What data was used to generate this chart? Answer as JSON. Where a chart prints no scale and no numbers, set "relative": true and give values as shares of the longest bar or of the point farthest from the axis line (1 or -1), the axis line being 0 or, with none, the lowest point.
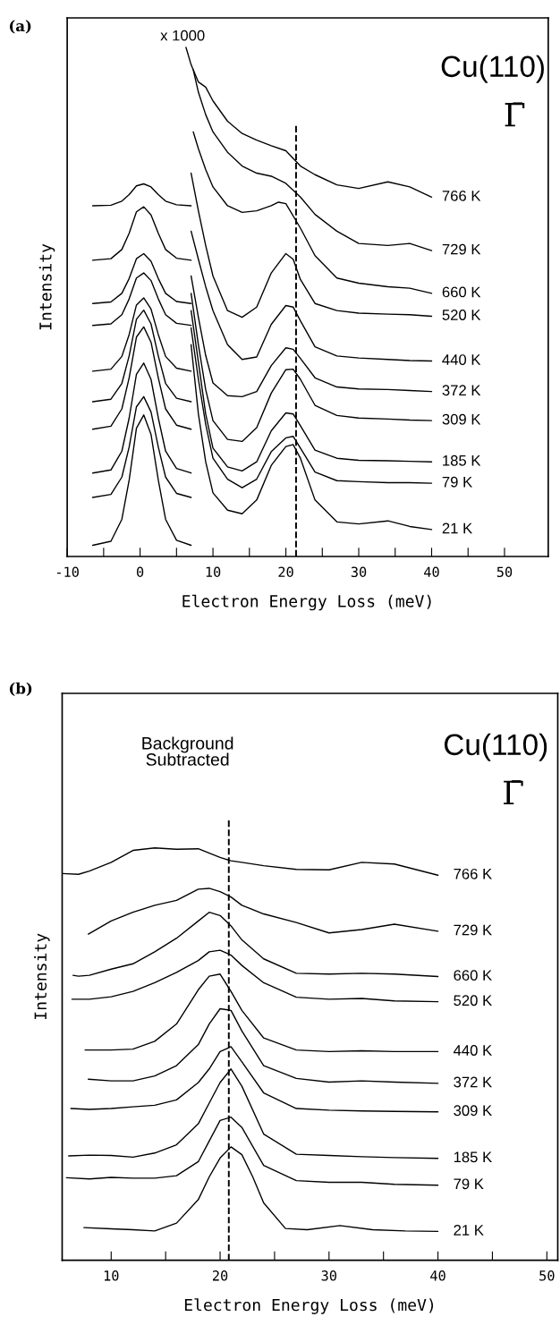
{
  "chart_data": [
    {
      "type": "line",
      "title": "(a)",
      "xlabel": "Electron Energy Loss (meV)",
      "ylabel": "Intensity",
      "relative": true,
      "tick_labels": "x",
      "line_style": "solid",
      "marker": "none",
      "xlim": [
        -10,
        56
      ],
      "xticks": [
        -10,
        {
          "value": -5,
          "label": null
        },
        0,
        {
          "value": 5,
          "label": null
        },
        10,
        {
          "value": 15,
          "label": null
        },
        20,
        {
          "value": 25,
          "label": null
        },
        30,
        {
          "value": 35,
          "label": null
        },
        40,
        {
          "value": 45,
          "label": null
        },
        50
      ],
      "annotations": [
        "x 1000",
        "Cu(110)",
        "Γ̄"
      ],
      "ref_lines": [
        {
          "axis": "x",
          "value": 21.4,
          "color": "#000000",
          "line_style": "dashed"
        }
      ],
      "series": [
        {
          "color": "#000000",
          "x": [
            -6.5,
            -4,
            -2.5,
            -1.5,
            -0.5,
            0.5,
            1.5,
            2.5,
            3.5,
            5,
            7
          ],
          "values": [
            0.689,
            0.69,
            0.698,
            0.711,
            0.728,
            0.732,
            0.726,
            0.711,
            0.698,
            0.691,
            0.689
          ]
        },
        {
          "color": "#000000",
          "x": [
            -6.5,
            -4,
            -2.5,
            -1.5,
            -0.5,
            0.5,
            1.5,
            2.5,
            3.5,
            5,
            7
          ],
          "values": [
            0.582,
            0.585,
            0.603,
            0.635,
            0.677,
            0.687,
            0.671,
            0.635,
            0.603,
            0.586,
            0.582
          ]
        },
        {
          "color": "#000000",
          "x": [
            -6.5,
            -4,
            -2.5,
            -1.5,
            -0.5,
            0.5,
            1.5,
            2.5,
            3.5,
            5,
            7
          ],
          "values": [
            0.497,
            0.5,
            0.517,
            0.546,
            0.585,
            0.595,
            0.58,
            0.546,
            0.517,
            0.501,
            0.497
          ]
        },
        {
          "color": "#000000",
          "x": [
            -6.5,
            -4,
            -2.5,
            -1.5,
            -0.5,
            0.5,
            1.5,
            2.5,
            3.5,
            5,
            7
          ],
          "values": [
            0.454,
            0.457,
            0.475,
            0.506,
            0.547,
            0.557,
            0.542,
            0.506,
            0.475,
            0.458,
            0.454
          ]
        },
        {
          "color": "#000000",
          "x": [
            -6.5,
            -4,
            -2.5,
            -1.5,
            -0.5,
            0.5,
            1.5,
            2.5,
            3.5,
            5,
            7
          ],
          "values": [
            0.364,
            0.368,
            0.393,
            0.436,
            0.494,
            0.508,
            0.486,
            0.436,
            0.393,
            0.37,
            0.364
          ]
        },
        {
          "color": "#000000",
          "x": [
            -6.5,
            -4,
            -2.5,
            -1.5,
            -0.5,
            0.5,
            1.5,
            2.5,
            3.5,
            5,
            7
          ],
          "values": [
            0.304,
            0.309,
            0.34,
            0.394,
            0.466,
            0.484,
            0.457,
            0.394,
            0.34,
            0.311,
            0.304
          ]
        },
        {
          "color": "#000000",
          "x": [
            -6.5,
            -4,
            -2.5,
            -1.5,
            -0.5,
            0.5,
            1.5,
            2.5,
            3.5,
            5,
            7
          ],
          "values": [
            0.25,
            0.256,
            0.29,
            0.351,
            0.431,
            0.451,
            0.421,
            0.351,
            0.29,
            0.258,
            0.25
          ]
        },
        {
          "color": "#000000",
          "x": [
            -6.5,
            -4,
            -2.5,
            -1.5,
            -0.5,
            0.5,
            1.5,
            2.5,
            3.5,
            5,
            7
          ],
          "values": [
            0.164,
            0.17,
            0.207,
            0.272,
            0.358,
            0.38,
            0.348,
            0.272,
            0.207,
            0.173,
            0.164
          ]
        },
        {
          "color": "#000000",
          "x": [
            -6.5,
            -4,
            -2.5,
            -1.5,
            -0.5,
            0.5,
            1.5,
            2.5,
            3.5,
            5,
            7
          ],
          "values": [
            0.116,
            0.122,
            0.156,
            0.215,
            0.294,
            0.314,
            0.284,
            0.215,
            0.156,
            0.124,
            0.116
          ]
        },
        {
          "color": "#000000",
          "x": [
            -6.5,
            -4,
            -2.5,
            -1.5,
            -0.5,
            0.5,
            1.5,
            2.5,
            3.5,
            5,
            7
          ],
          "values": [
            0.022,
            0.03,
            0.073,
            0.15,
            0.252,
            0.278,
            0.24,
            0.15,
            0.073,
            0.032,
            0.022
          ]
        },
        {
          "name": "766 K",
          "color": "#000000",
          "x": [
            6.3,
            7,
            8,
            9,
            10,
            12,
            14,
            16,
            18,
            20,
            22,
            24,
            27,
            30,
            34,
            37,
            40
          ],
          "values": [
            1.0,
            0.966,
            0.932,
            0.922,
            0.895,
            0.855,
            0.831,
            0.818,
            0.807,
            0.797,
            0.767,
            0.75,
            0.73,
            0.723,
            0.736,
            0.726,
            0.706
          ]
        },
        {
          "name": "729 K",
          "color": "#000000",
          "x": [
            7.3,
            8,
            9,
            10,
            12,
            14,
            16,
            18,
            20,
            22,
            24,
            27,
            30,
            34,
            37,
            40
          ],
          "values": [
            0.956,
            0.912,
            0.868,
            0.834,
            0.794,
            0.767,
            0.753,
            0.747,
            0.733,
            0.706,
            0.672,
            0.639,
            0.615,
            0.611,
            0.615,
            0.601
          ]
        },
        {
          "name": "660 K",
          "color": "#000000",
          "x": [
            7.3,
            8,
            9,
            10,
            12,
            14,
            16,
            18,
            19,
            20,
            22,
            24,
            27,
            30,
            34,
            37,
            40
          ],
          "values": [
            0.834,
            0.801,
            0.76,
            0.726,
            0.689,
            0.676,
            0.679,
            0.689,
            0.696,
            0.693,
            0.645,
            0.591,
            0.547,
            0.537,
            0.53,
            0.527,
            0.517
          ]
        },
        {
          "name": "520 K",
          "color": "#000000",
          "x": [
            7,
            8,
            9,
            10,
            12,
            14,
            16,
            18,
            20,
            21,
            22,
            24,
            27,
            30,
            34,
            37,
            40
          ],
          "values": [
            0.753,
            0.679,
            0.611,
            0.551,
            0.483,
            0.47,
            0.49,
            0.557,
            0.595,
            0.584,
            0.544,
            0.497,
            0.483,
            0.478,
            0.476,
            0.475,
            0.472
          ]
        },
        {
          "name": "440 K",
          "color": "#000000",
          "x": [
            7,
            8,
            9,
            10,
            12,
            14,
            16,
            18,
            20,
            21,
            22,
            24,
            27,
            30,
            34,
            37,
            40
          ],
          "values": [
            0.639,
            0.584,
            0.53,
            0.483,
            0.416,
            0.387,
            0.392,
            0.456,
            0.493,
            0.49,
            0.463,
            0.412,
            0.394,
            0.39,
            0.387,
            0.385,
            0.384
          ]
        },
        {
          "name": "372 K",
          "color": "#000000",
          "x": [
            7,
            8,
            9,
            10,
            12,
            14,
            16,
            18,
            20,
            21,
            22,
            24,
            27,
            30,
            34,
            37,
            40
          ],
          "values": [
            0.551,
            0.47,
            0.395,
            0.341,
            0.316,
            0.314,
            0.324,
            0.375,
            0.41,
            0.407,
            0.389,
            0.351,
            0.333,
            0.329,
            0.328,
            0.326,
            0.324
          ]
        },
        {
          "name": "309 K",
          "color": "#000000",
          "x": [
            7,
            8,
            9,
            10,
            12,
            14,
            16,
            18,
            20,
            21,
            22,
            24,
            27,
            30,
            34,
            37,
            40
          ],
          "values": [
            0.517,
            0.416,
            0.328,
            0.267,
            0.23,
            0.226,
            0.253,
            0.321,
            0.367,
            0.368,
            0.348,
            0.297,
            0.277,
            0.272,
            0.27,
            0.268,
            0.267
          ]
        },
        {
          "name": "185 K",
          "color": "#000000",
          "x": [
            7,
            8,
            9,
            10,
            12,
            14,
            16,
            18,
            20,
            21,
            22,
            24,
            27,
            30,
            34,
            37,
            40
          ],
          "values": [
            0.483,
            0.382,
            0.28,
            0.213,
            0.176,
            0.168,
            0.186,
            0.247,
            0.282,
            0.28,
            0.257,
            0.209,
            0.193,
            0.189,
            0.188,
            0.187,
            0.186
          ]
        },
        {
          "name": "79 K",
          "color": "#000000",
          "x": [
            7,
            8,
            9,
            10,
            12,
            14,
            16,
            18,
            20,
            21,
            22,
            24,
            27,
            30,
            34,
            37,
            40
          ],
          "values": [
            0.449,
            0.348,
            0.26,
            0.193,
            0.152,
            0.135,
            0.152,
            0.206,
            0.233,
            0.236,
            0.213,
            0.166,
            0.149,
            0.147,
            0.145,
            0.145,
            0.144
          ]
        },
        {
          "name": "21 K",
          "color": "#000000",
          "x": [
            7,
            8,
            9,
            10,
            12,
            14,
            16,
            18,
            20,
            21,
            22,
            24,
            27,
            30,
            34,
            37,
            40
          ],
          "values": [
            0.416,
            0.28,
            0.186,
            0.125,
            0.091,
            0.084,
            0.111,
            0.179,
            0.216,
            0.22,
            0.193,
            0.111,
            0.068,
            0.064,
            0.07,
            0.059,
            0.053
          ]
        }
      ]
    },
    {
      "type": "line",
      "title": "(b)",
      "xlabel": "Electron Energy Loss (meV)",
      "ylabel": "Intensity",
      "relative": true,
      "tick_labels": "x",
      "line_style": "solid",
      "marker": "none",
      "xlim": [
        5.5,
        51
      ],
      "xticks": [
        10,
        {
          "value": 15,
          "label": null
        },
        20,
        {
          "value": 25,
          "label": null
        },
        30,
        {
          "value": 35,
          "label": null
        },
        40,
        {
          "value": 45,
          "label": null
        },
        50
      ],
      "annotations": [
        "Background\nSubtracted",
        "Cu(110)",
        "Γ̄"
      ],
      "ref_lines": [
        {
          "axis": "x",
          "value": 20.8,
          "color": "#000000",
          "line_style": "dashed"
        }
      ],
      "series": [
        {
          "name": "766 K",
          "color": "#000000",
          "x": [
            5.5,
            7,
            8,
            10,
            12,
            14,
            16,
            18,
            20,
            21,
            22,
            24,
            27,
            30,
            33,
            36,
            40
          ],
          "values": [
            0.938,
            0.936,
            0.944,
            0.965,
            0.994,
            1.0,
            0.997,
            0.998,
            0.977,
            0.969,
            0.965,
            0.957,
            0.948,
            0.947,
            0.965,
            0.961,
            0.934
          ]
        },
        {
          "name": "729 K",
          "color": "#000000",
          "x": [
            7.9,
            10,
            12,
            14,
            16,
            18,
            19,
            20,
            21,
            22,
            24,
            27,
            30,
            33,
            36,
            40
          ],
          "values": [
            0.791,
            0.823,
            0.844,
            0.861,
            0.873,
            0.9,
            0.902,
            0.894,
            0.881,
            0.861,
            0.84,
            0.819,
            0.794,
            0.802,
            0.815,
            0.798
          ]
        },
        {
          "name": "660 K",
          "color": "#000000",
          "x": [
            6.5,
            7,
            8,
            10,
            12,
            14,
            16,
            18,
            19,
            20,
            21,
            22,
            24,
            27,
            30,
            33,
            36,
            40
          ],
          "values": [
            0.691,
            0.689,
            0.691,
            0.706,
            0.719,
            0.748,
            0.781,
            0.823,
            0.844,
            0.836,
            0.811,
            0.777,
            0.731,
            0.696,
            0.694,
            0.696,
            0.694,
            0.688
          ]
        },
        {
          "name": "520 K",
          "color": "#000000",
          "x": [
            6.4,
            8,
            10,
            12,
            14,
            16,
            18,
            19,
            20,
            21,
            22,
            24,
            27,
            30,
            33,
            36,
            40
          ],
          "values": [
            0.633,
            0.633,
            0.639,
            0.652,
            0.673,
            0.698,
            0.727,
            0.748,
            0.752,
            0.74,
            0.715,
            0.673,
            0.638,
            0.633,
            0.635,
            0.629,
            0.627
          ]
        },
        {
          "name": "440 K",
          "color": "#000000",
          "x": [
            7.6,
            8,
            10,
            12,
            14,
            16,
            18,
            19,
            20,
            21,
            22,
            24,
            27,
            30,
            33,
            36,
            40
          ],
          "values": [
            0.51,
            0.51,
            0.51,
            0.512,
            0.531,
            0.573,
            0.656,
            0.689,
            0.694,
            0.652,
            0.606,
            0.539,
            0.51,
            0.506,
            0.508,
            0.506,
            0.506
          ]
        },
        {
          "name": "372 K",
          "color": "#000000",
          "x": [
            7.9,
            10,
            12,
            14,
            16,
            18,
            19,
            20,
            21,
            22,
            24,
            27,
            30,
            33,
            36,
            40
          ],
          "values": [
            0.439,
            0.435,
            0.435,
            0.447,
            0.472,
            0.523,
            0.573,
            0.61,
            0.606,
            0.556,
            0.472,
            0.441,
            0.432,
            0.435,
            0.432,
            0.429
          ]
        },
        {
          "name": "309 K",
          "color": "#000000",
          "x": [
            6.3,
            8,
            10,
            12,
            14,
            16,
            18,
            19,
            20,
            21,
            22,
            24,
            27,
            30,
            33,
            36,
            40
          ],
          "values": [
            0.368,
            0.366,
            0.368,
            0.372,
            0.376,
            0.389,
            0.431,
            0.464,
            0.506,
            0.518,
            0.481,
            0.406,
            0.368,
            0.364,
            0.362,
            0.361,
            0.36
          ]
        },
        {
          "name": "185 K",
          "color": "#000000",
          "x": [
            6.1,
            8,
            10,
            12,
            14,
            16,
            18,
            19,
            20,
            21,
            22,
            24,
            27,
            30,
            33,
            36,
            40
          ],
          "values": [
            0.253,
            0.255,
            0.254,
            0.25,
            0.26,
            0.28,
            0.331,
            0.381,
            0.431,
            0.464,
            0.422,
            0.306,
            0.257,
            0.254,
            0.251,
            0.249,
            0.247
          ]
        },
        {
          "name": "79 K",
          "color": "#000000",
          "x": [
            5.9,
            8,
            10,
            12,
            14,
            16,
            18,
            19,
            20,
            21,
            22,
            24,
            27,
            30,
            33,
            36,
            40
          ],
          "values": [
            0.2,
            0.197,
            0.201,
            0.199,
            0.199,
            0.205,
            0.239,
            0.289,
            0.339,
            0.347,
            0.322,
            0.23,
            0.193,
            0.189,
            0.189,
            0.184,
            0.182
          ]
        },
        {
          "name": "21 K",
          "color": "#000000",
          "x": [
            7.5,
            10,
            12,
            14,
            16,
            18,
            19,
            20,
            21,
            22,
            23,
            24,
            26,
            28,
            31,
            34,
            37,
            40
          ],
          "values": [
            0.079,
            0.076,
            0.074,
            0.071,
            0.09,
            0.147,
            0.202,
            0.248,
            0.275,
            0.256,
            0.202,
            0.139,
            0.077,
            0.074,
            0.084,
            0.074,
            0.071,
            0.07
          ]
        }
      ]
    }
  ]
}
